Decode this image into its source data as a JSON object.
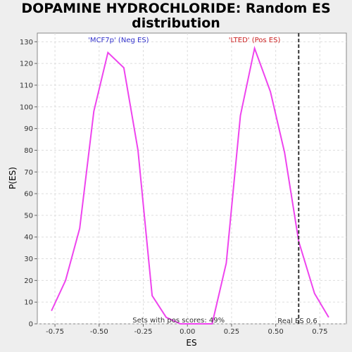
{
  "chart_data": {
    "type": "line",
    "title_lines": [
      "DOPAMINE HYDROCHLORIDE: Random ES",
      "distribution"
    ],
    "xlabel": "ES",
    "ylabel": "P(ES)",
    "xlim": [
      -0.85,
      0.9
    ],
    "ylim": [
      0,
      134
    ],
    "x_ticks": [
      -0.75,
      -0.5,
      -0.25,
      0.0,
      0.25,
      0.5,
      0.75
    ],
    "x_tick_labels": [
      "-0.75",
      "-0.50",
      "-0.25",
      "0.00",
      "0.25",
      "0.50",
      "0.75"
    ],
    "y_ticks": [
      0,
      10,
      20,
      30,
      40,
      50,
      60,
      70,
      80,
      90,
      100,
      110,
      120,
      130
    ],
    "y_tick_labels": [
      "0",
      "10",
      "20",
      "30",
      "40",
      "50",
      "60",
      "70",
      "80",
      "90",
      "100",
      "110",
      "120",
      "130"
    ],
    "grid": true,
    "series": [
      {
        "color": "#ee44ee",
        "x": [
          -0.77,
          -0.69,
          -0.61,
          -0.53,
          -0.45,
          -0.36,
          -0.28,
          -0.2,
          -0.12,
          -0.04,
          0.04,
          0.14,
          0.22,
          0.3,
          0.38,
          0.47,
          0.55,
          0.63,
          0.72,
          0.8
        ],
        "y": [
          6,
          20,
          44,
          98,
          125,
          118,
          80,
          13,
          3,
          0,
          0,
          0,
          28,
          96,
          127,
          107,
          79,
          38,
          14,
          3
        ]
      }
    ],
    "vline": {
      "x": 0.63,
      "label": "Real ES 0.6",
      "color": "#333333"
    },
    "annotations": {
      "neg_label": "'MCF7p' (Neg ES)",
      "neg_color": "#3333cc",
      "pos_label": "'LTED' (Pos ES)",
      "pos_color": "#cc2222",
      "pos_scores": "Sets with pos scores: 49%"
    }
  }
}
